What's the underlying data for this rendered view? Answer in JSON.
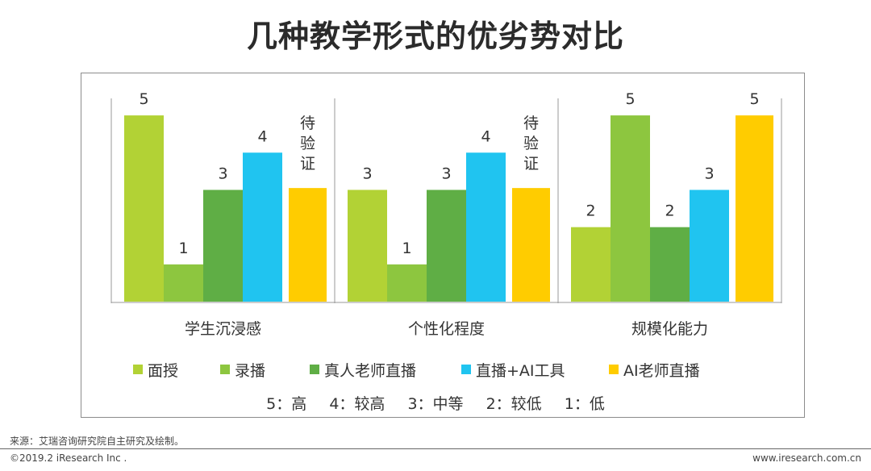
{
  "title": "几种教学形式的优劣势对比",
  "chart_data": {
    "type": "bar",
    "categories": [
      "学生沉浸感",
      "个性化程度",
      "规模化能力"
    ],
    "series": [
      {
        "name": "面授",
        "values": [
          5,
          3,
          2
        ],
        "color": "#b2d235"
      },
      {
        "name": "录播",
        "values": [
          1,
          1,
          5
        ],
        "color": "#8dc63f"
      },
      {
        "name": "真人老师直播",
        "values": [
          3,
          3,
          2
        ],
        "color": "#5fae45"
      },
      {
        "name": "直播+AI工具",
        "values": [
          4,
          4,
          3
        ],
        "color": "#20c4f0"
      },
      {
        "name": "AI老师直播",
        "values": [
          null,
          null,
          5
        ],
        "color": "#ffcc00",
        "pending_label": "待验证"
      }
    ],
    "ylim": [
      0,
      5.5
    ],
    "grid": false,
    "legend_position": "bottom",
    "xlabel": "",
    "ylabel": ""
  },
  "scale_legend": [
    "5：高",
    "4：较高",
    "3：中等",
    "2：较低",
    "1：低"
  ],
  "footer": {
    "source": "来源：艾瑞咨询研究院自主研究及绘制。",
    "copyright": "©2019.2 iResearch Inc .",
    "website": "www.iresearch.com.cn"
  }
}
